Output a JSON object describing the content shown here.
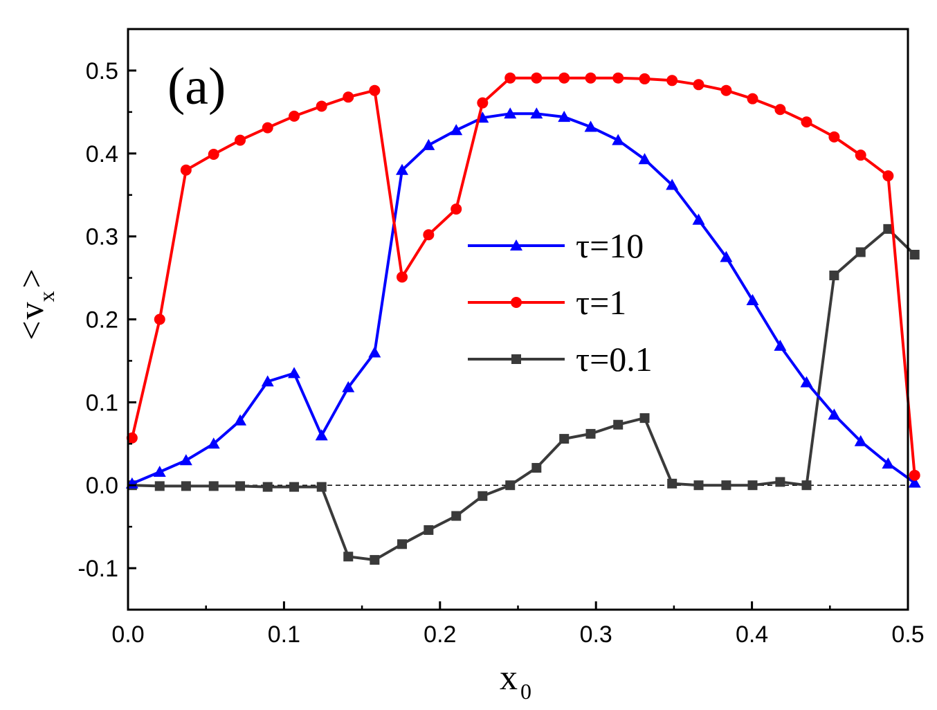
{
  "chart_data": {
    "type": "line",
    "panel_label": "(a)",
    "xlabel_main": "x",
    "xlabel_sub": "0",
    "ylabel_left": "<",
    "ylabel_main": "v",
    "ylabel_sub": "x",
    "ylabel_right": ">",
    "xlim": [
      0.0,
      0.5
    ],
    "ylim": [
      -0.15,
      0.55
    ],
    "xticks": [
      0.0,
      0.1,
      0.2,
      0.3,
      0.4,
      0.5
    ],
    "xtick_labels": [
      "0.0",
      "0.1",
      "0.2",
      "0.3",
      "0.4",
      "0.5"
    ],
    "yticks": [
      -0.1,
      0.0,
      0.1,
      0.2,
      0.3,
      0.4,
      0.5
    ],
    "ytick_labels": [
      "-0.1",
      "0.0",
      "0.1",
      "0.2",
      "0.3",
      "0.4",
      "0.5"
    ],
    "reference_line": 0.0,
    "legend_position": "center-right",
    "series": [
      {
        "name": "τ=10",
        "color": "#0000ff",
        "marker": "triangle",
        "x": [
          0.0026,
          0.0203,
          0.0372,
          0.0549,
          0.0719,
          0.0895,
          0.1065,
          0.1241,
          0.1412,
          0.1581,
          0.1757,
          0.1927,
          0.2104,
          0.2273,
          0.245,
          0.2619,
          0.2796,
          0.2966,
          0.3142,
          0.3312,
          0.3488,
          0.3658,
          0.3835,
          0.4004,
          0.4181,
          0.435,
          0.4527,
          0.4697,
          0.4873,
          0.5043
        ],
        "values": [
          0.002,
          0.016,
          0.03,
          0.05,
          0.078,
          0.125,
          0.135,
          0.06,
          0.118,
          0.16,
          0.38,
          0.41,
          0.428,
          0.443,
          0.448,
          0.448,
          0.444,
          0.432,
          0.416,
          0.393,
          0.362,
          0.32,
          0.275,
          0.223,
          0.168,
          0.124,
          0.085,
          0.053,
          0.026,
          0.003
        ]
      },
      {
        "name": "τ=1",
        "color": "#ff0000",
        "marker": "circle",
        "x": [
          0.0026,
          0.0203,
          0.0372,
          0.0549,
          0.0719,
          0.0895,
          0.1065,
          0.1241,
          0.1412,
          0.1581,
          0.1757,
          0.1927,
          0.2104,
          0.2273,
          0.245,
          0.2619,
          0.2796,
          0.2966,
          0.3142,
          0.3312,
          0.3488,
          0.3658,
          0.3835,
          0.4004,
          0.4181,
          0.435,
          0.4527,
          0.4697,
          0.4873,
          0.5043
        ],
        "values": [
          0.057,
          0.2,
          0.38,
          0.399,
          0.416,
          0.431,
          0.445,
          0.457,
          0.468,
          0.476,
          0.251,
          0.302,
          0.333,
          0.461,
          0.491,
          0.491,
          0.491,
          0.491,
          0.491,
          0.49,
          0.488,
          0.483,
          0.476,
          0.466,
          0.453,
          0.438,
          0.42,
          0.398,
          0.373,
          0.012
        ]
      },
      {
        "name": "τ=0.1",
        "color": "#3a3a3a",
        "marker": "square",
        "x": [
          0.0026,
          0.0203,
          0.0372,
          0.0549,
          0.0719,
          0.0895,
          0.1065,
          0.1241,
          0.1412,
          0.1581,
          0.1757,
          0.1927,
          0.2104,
          0.2273,
          0.245,
          0.2619,
          0.2796,
          0.2966,
          0.3142,
          0.3312,
          0.3488,
          0.3658,
          0.3835,
          0.4004,
          0.4181,
          0.435,
          0.4527,
          0.4697,
          0.4873,
          0.5043
        ],
        "values": [
          0.0,
          -0.001,
          -0.001,
          -0.001,
          -0.001,
          -0.002,
          -0.002,
          -0.002,
          -0.086,
          -0.09,
          -0.071,
          -0.054,
          -0.037,
          -0.013,
          0.0,
          0.021,
          0.056,
          0.062,
          0.073,
          0.081,
          0.002,
          0.0,
          0.0,
          0.0,
          0.004,
          0.0,
          0.253,
          0.281,
          0.309,
          0.278
        ]
      }
    ]
  }
}
